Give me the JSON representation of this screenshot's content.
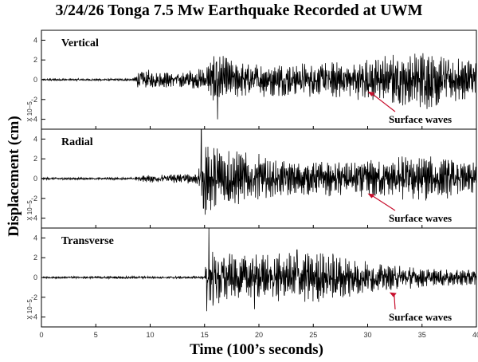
{
  "chart_data": {
    "type": "line",
    "title": "3/24/26 Tonga 7.5 Mw Earthquake Recorded at UWM",
    "xlabel": "Time (100’s seconds)",
    "ylabel": "Displacement (cm)",
    "xlim": [
      0,
      40
    ],
    "x_ticks": [
      "0",
      "5",
      "10",
      "15",
      "20",
      "25",
      "30",
      "35",
      "40"
    ],
    "ylim": [
      -5,
      5
    ],
    "y_ticks": [
      "4",
      "2",
      "0",
      "-2",
      "-4"
    ],
    "y_scale_label": "X 10−5",
    "grid": false,
    "series": [
      {
        "name": "Vertical",
        "annotation": "Surface waves",
        "annotation_at": [
          30,
          -1.2
        ],
        "envelope": [
          [
            0,
            0.1
          ],
          [
            8.5,
            0.1
          ],
          [
            9,
            1.0
          ],
          [
            12,
            0.6
          ],
          [
            15,
            1.0
          ],
          [
            16,
            2.2
          ],
          [
            18,
            1.5
          ],
          [
            22,
            1.4
          ],
          [
            28,
            1.5
          ],
          [
            33,
            2.2
          ],
          [
            36,
            2.5
          ],
          [
            40,
            1.8
          ]
        ],
        "spikes": [
          [
            16.2,
            -4.0
          ],
          [
            16.1,
            1.8
          ]
        ]
      },
      {
        "name": "Radial",
        "annotation": "Surface waves",
        "annotation_at": [
          30,
          -1.5
        ],
        "envelope": [
          [
            0,
            0.1
          ],
          [
            8.5,
            0.1
          ],
          [
            9,
            0.3
          ],
          [
            12,
            0.4
          ],
          [
            14.4,
            0.5
          ],
          [
            15,
            3.2
          ],
          [
            18,
            2.4
          ],
          [
            21,
            1.6
          ],
          [
            25,
            1.4
          ],
          [
            30,
            1.6
          ],
          [
            35,
            2.0
          ],
          [
            40,
            1.3
          ]
        ],
        "spikes": [
          [
            14.7,
            5.0
          ],
          [
            14.9,
            -3.0
          ],
          [
            20,
            2.5
          ]
        ]
      },
      {
        "name": "Transverse",
        "annotation": "Surface waves",
        "annotation_at": [
          32,
          -1.5
        ],
        "envelope": [
          [
            0,
            0.1
          ],
          [
            15,
            0.1
          ],
          [
            15.3,
            3.0
          ],
          [
            18,
            1.8
          ],
          [
            22,
            2.0
          ],
          [
            27,
            2.2
          ],
          [
            30,
            1.3
          ],
          [
            35,
            0.8
          ],
          [
            40,
            0.7
          ]
        ],
        "spikes": [
          [
            15.4,
            5.0
          ],
          [
            15.2,
            -3.4
          ],
          [
            19.6,
            5.0
          ],
          [
            19.6,
            -3.2
          ],
          [
            23.5,
            2.8
          ],
          [
            26.8,
            2.4
          ]
        ]
      }
    ]
  }
}
